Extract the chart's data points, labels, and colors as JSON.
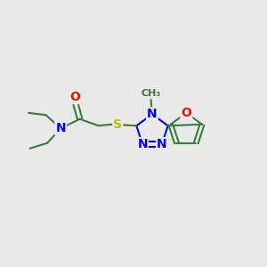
{
  "bg_color": "#e9e9e9",
  "bond_color": "#3a7a3a",
  "bond_width": 1.5,
  "atom_colors": {
    "N": "#0000ee",
    "O": "#ee1100",
    "S": "#bbbb00",
    "C": "#3a7a3a"
  },
  "font_size": 10,
  "fig_size": [
    3.0,
    3.0
  ],
  "dpi": 100
}
